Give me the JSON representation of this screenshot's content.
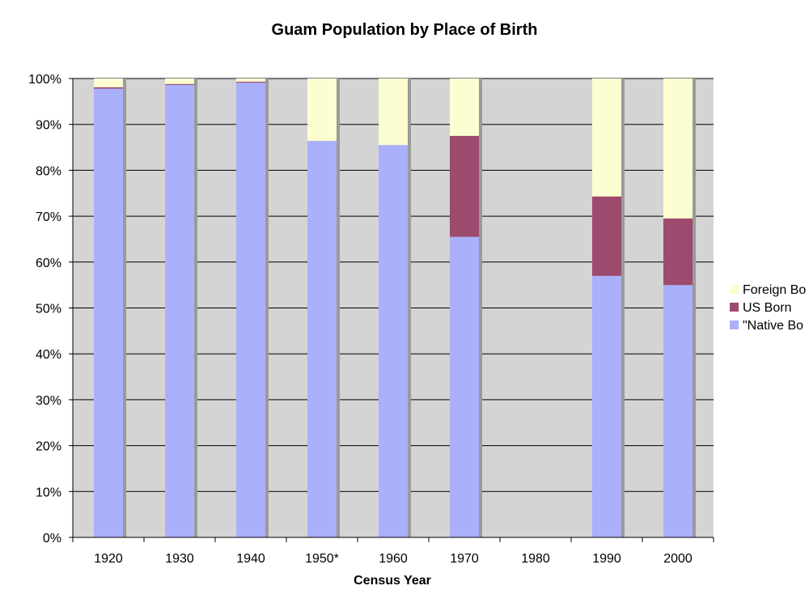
{
  "chart_data": {
    "type": "bar",
    "stacked": true,
    "title": "Guam Population by Place of Birth",
    "xlabel": "Census Year",
    "ylabel": "",
    "ylim": [
      0,
      100
    ],
    "y_tick_labels": [
      "0%",
      "10%",
      "20%",
      "30%",
      "40%",
      "50%",
      "60%",
      "70%",
      "80%",
      "90%",
      "100%"
    ],
    "categories": [
      "1920",
      "1930",
      "1940",
      "1950*",
      "1960",
      "1970",
      "1980",
      "1990",
      "2000"
    ],
    "series": [
      {
        "name": "\"Native Bo",
        "color": "#aab0fb",
        "values": [
          97.8,
          98.6,
          99.1,
          86.4,
          85.5,
          65.5,
          null,
          57.0,
          55.0
        ]
      },
      {
        "name": "US Born",
        "color": "#9e4a6e",
        "values": [
          0.3,
          0.2,
          0.2,
          0.0,
          0.0,
          22.0,
          null,
          17.3,
          14.5
        ]
      },
      {
        "name": "Foreign Bo",
        "color": "#fdfdd2",
        "values": [
          1.9,
          1.2,
          0.7,
          13.6,
          14.5,
          12.5,
          null,
          25.7,
          30.5
        ]
      }
    ],
    "grid": true,
    "legend_position": "right",
    "colors": {
      "plot_background": "#d4d4d4",
      "gridline": "#000000"
    }
  }
}
